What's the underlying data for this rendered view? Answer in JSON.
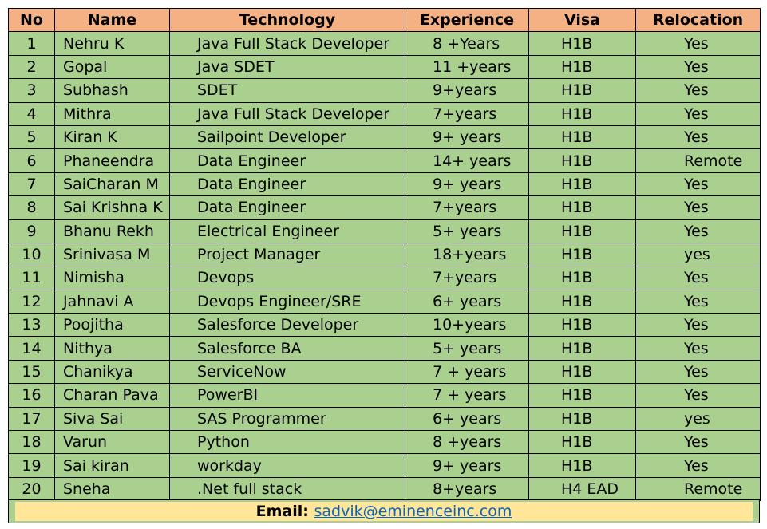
{
  "headers": [
    "No",
    "Name",
    "Technology",
    "Experience",
    "Visa",
    "Relocation"
  ],
  "rows": [
    [
      "1",
      "Nehru K",
      "Java  Full Stack Developer",
      "8 +Years",
      "H1B",
      "Yes"
    ],
    [
      "2",
      "Gopal",
      "Java SDET",
      "11 +years",
      "H1B",
      "Yes"
    ],
    [
      "3",
      "Subhash",
      "SDET",
      "9+years",
      "H1B",
      "Yes"
    ],
    [
      "4",
      "Mithra",
      "Java Full Stack Developer",
      "7+years",
      "H1B",
      "Yes"
    ],
    [
      "5",
      "Kiran K",
      "Sailpoint Developer",
      "9+ years",
      "H1B",
      "Yes"
    ],
    [
      "6",
      "Phaneendra",
      "Data Engineer",
      "14+ years",
      "H1B",
      "Remote"
    ],
    [
      "7",
      "SaiCharan M",
      "Data Engineer",
      "9+ years",
      "H1B",
      "Yes"
    ],
    [
      "8",
      "Sai Krishna K",
      "Data Engineer",
      "7+years",
      "H1B",
      "Yes"
    ],
    [
      "9",
      "Bhanu Rekh",
      "Electrical Engineer",
      "5+ years",
      "H1B",
      "Yes"
    ],
    [
      "10",
      "Srinivasa M",
      "Project Manager",
      "18+years",
      "H1B",
      "yes"
    ],
    [
      "11",
      "Nimisha",
      "Devops",
      "7+years",
      "H1B",
      "Yes"
    ],
    [
      "12",
      "Jahnavi A",
      "Devops Engineer/SRE",
      "6+ years",
      "H1B",
      "Yes"
    ],
    [
      "13",
      "Poojitha",
      "Salesforce Developer",
      "10+years",
      "H1B",
      "Yes"
    ],
    [
      "14",
      "Nithya",
      "Salesforce BA",
      "5+ years",
      "H1B",
      "Yes"
    ],
    [
      "15",
      "Chanikya",
      "ServiceNow",
      "7 + years",
      "H1B",
      "Yes"
    ],
    [
      "16",
      "Charan Pava",
      "PowerBI",
      "7 + years",
      "H1B",
      "Yes"
    ],
    [
      "17",
      "Siva Sai",
      "SAS Programmer",
      "6+ years",
      "H1B",
      "yes"
    ],
    [
      "18",
      "Varun",
      "Python",
      "8 +years",
      "H1B",
      "Yes"
    ],
    [
      "19",
      "Sai kiran",
      "workday",
      "9+ years",
      "H1B",
      "Yes"
    ],
    [
      "20",
      "Sneha",
      ".Net full stack",
      "8+years",
      "H4 EAD",
      "Remote"
    ]
  ],
  "footer": {
    "label": "Email: ",
    "email": "sadvik@eminenceinc.com"
  }
}
